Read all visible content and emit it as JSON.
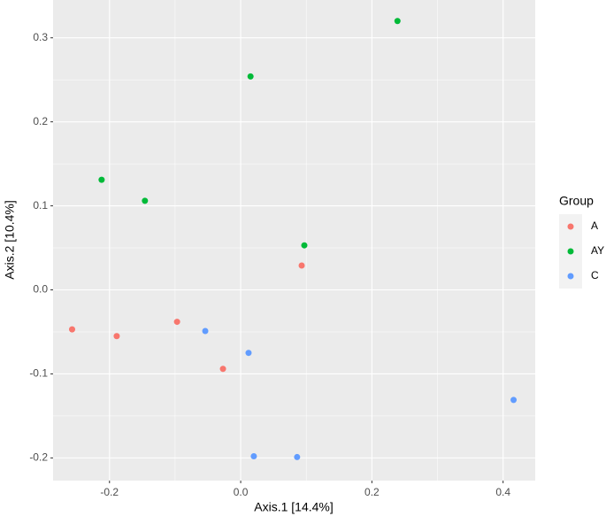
{
  "chart_data": {
    "type": "scatter",
    "x_label": "Axis.1   [14.4%]",
    "y_label": "Axis.2   [10.4%]",
    "legend_title": "Group",
    "legend_position": "right",
    "grid": true,
    "xlim": [
      -0.286,
      0.449
    ],
    "ylim": [
      -0.227,
      0.345
    ],
    "xticks": [
      -0.2,
      {
        "value": 0,
        "label": "0.0"
      },
      0.2,
      0.4
    ],
    "yticks": [
      -0.2,
      -0.1,
      {
        "value": 0,
        "label": "0.0"
      },
      0.1,
      0.2,
      0.3
    ],
    "series": [
      {
        "name": "A",
        "color": "#F8766D",
        "x": [
          -0.257,
          -0.189,
          -0.097,
          -0.027,
          0.093
        ],
        "values": [
          -0.047,
          -0.055,
          -0.038,
          -0.094,
          0.029
        ]
      },
      {
        "name": "AY",
        "color": "#00BA38",
        "x": [
          0.239,
          0.015,
          -0.212,
          -0.146,
          0.097
        ],
        "values": [
          0.32,
          0.254,
          0.131,
          0.106,
          0.053
        ]
      },
      {
        "name": "C",
        "color": "#619CFF",
        "x": [
          -0.054,
          0.012,
          0.02,
          0.086,
          0.416
        ],
        "values": [
          -0.049,
          -0.075,
          -0.198,
          -0.199,
          -0.131
        ]
      }
    ]
  }
}
